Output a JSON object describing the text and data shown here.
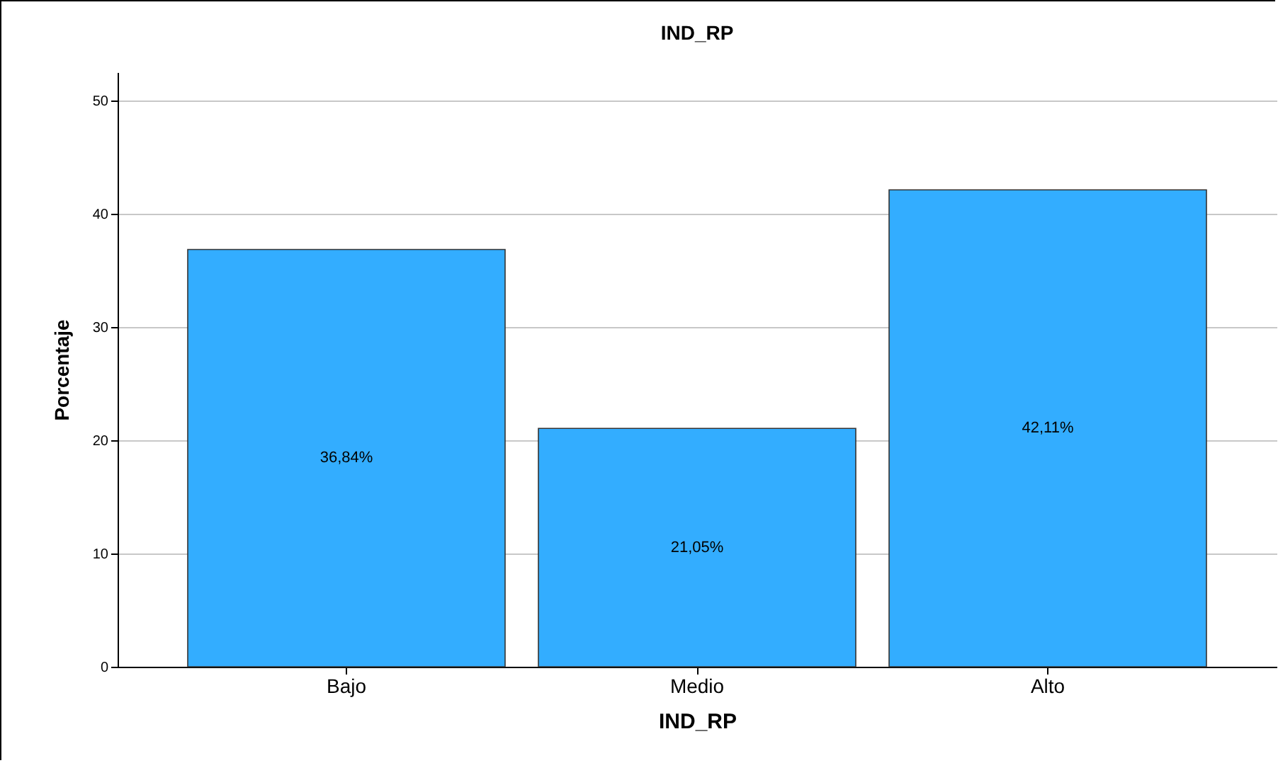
{
  "chart_data": {
    "type": "bar",
    "title": "IND_RP",
    "xlabel": "IND_RP",
    "ylabel": "Porcentaje",
    "categories": [
      "Bajo",
      "Medio",
      "Alto"
    ],
    "values": [
      36.84,
      21.05,
      42.11
    ],
    "value_labels": [
      "36,84%",
      "21,05%",
      "42,11%"
    ],
    "color": "#33adff",
    "ylim": [
      0,
      52.5
    ],
    "yticks": [
      0,
      10,
      20,
      30,
      40,
      50
    ],
    "grid": "y"
  }
}
